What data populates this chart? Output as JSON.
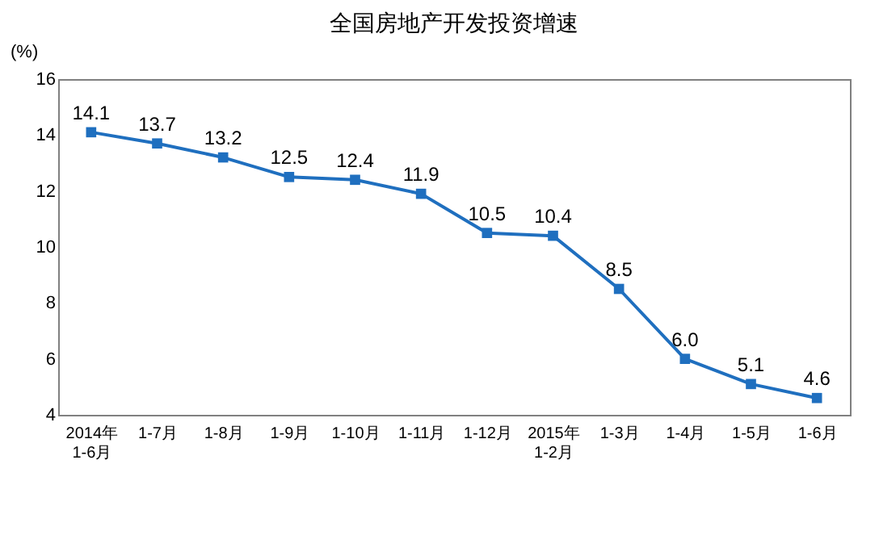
{
  "chart_data": {
    "type": "line",
    "title": "全国房地产开发投资增速",
    "ylabel": "(%)",
    "categories": [
      "2014年\n1-6月",
      "1-7月",
      "1-8月",
      "1-9月",
      "1-10月",
      "1-11月",
      "1-12月",
      "2015年\n1-2月",
      "1-3月",
      "1-4月",
      "1-5月",
      "1-6月"
    ],
    "series": [
      {
        "color": "#1f6fbf",
        "values": [
          14.1,
          13.7,
          13.2,
          12.5,
          12.4,
          11.9,
          10.5,
          10.4,
          8.5,
          6.0,
          5.1,
          4.6
        ],
        "value_labels": [
          "14.1",
          "13.7",
          "13.2",
          "12.5",
          "12.4",
          "11.9",
          "10.5",
          "10.4",
          "8.5",
          "6.0",
          "5.1",
          "4.6"
        ]
      }
    ],
    "ylim": [
      4,
      16
    ],
    "yticks": [
      4,
      6,
      8,
      10,
      12,
      14,
      16
    ],
    "grid": false,
    "marker": "square",
    "line_style": "solid",
    "legend": false
  }
}
